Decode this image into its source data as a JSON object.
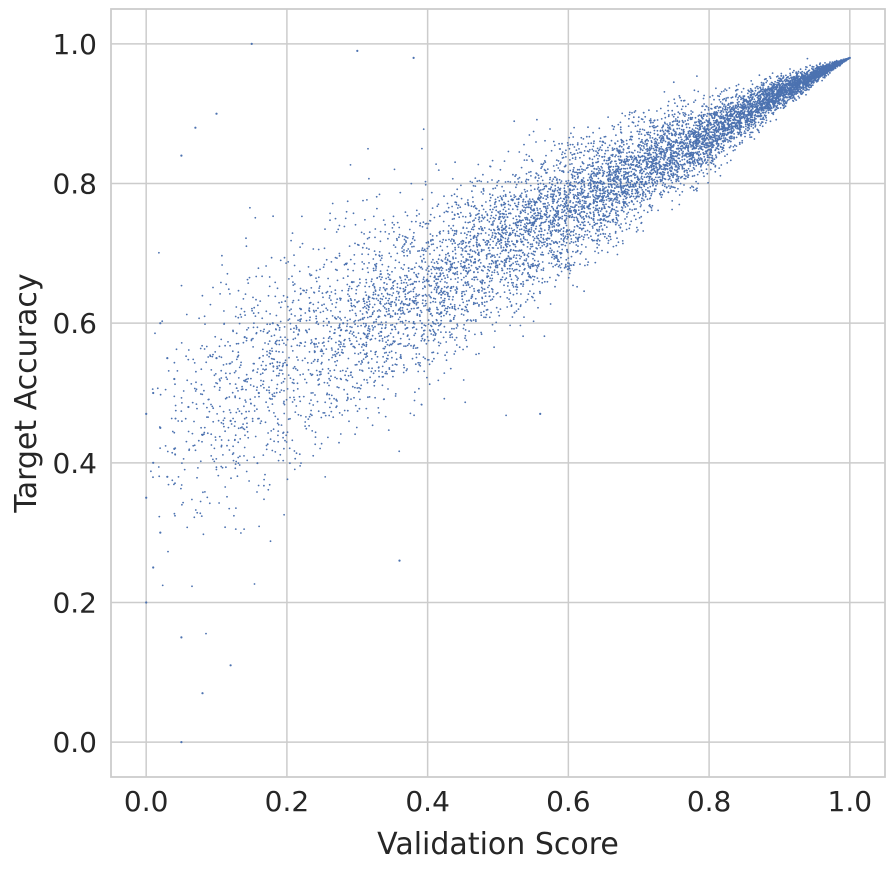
{
  "chart_data": {
    "type": "scatter",
    "title": "",
    "xlabel": "Validation Score",
    "ylabel": "Target Accuracy",
    "xlim": [
      -0.05,
      1.05
    ],
    "ylim": [
      -0.05,
      1.05
    ],
    "x_ticks": [
      0.0,
      0.2,
      0.4,
      0.6,
      0.8,
      1.0
    ],
    "y_ticks": [
      0.0,
      0.2,
      0.4,
      0.6,
      0.8,
      1.0
    ],
    "x_tick_labels": [
      "0.0",
      "0.2",
      "0.4",
      "0.6",
      "0.8",
      "1.0"
    ],
    "y_tick_labels": [
      "0.0",
      "0.2",
      "0.4",
      "0.6",
      "0.8",
      "1.0"
    ],
    "grid": true,
    "legend": "none",
    "marker_color": "#4c72b0",
    "series": [
      {
        "x": [
          0.0,
          0.0,
          0.01,
          0.01,
          0.02,
          0.02,
          0.03,
          0.04,
          0.05,
          0.05,
          0.07,
          0.08,
          0.1,
          0.12,
          0.15,
          0.3,
          0.36,
          0.38,
          0.56,
          1.0,
          0.0,
          0.01,
          0.02,
          0.03,
          0.04,
          0.05,
          0.06,
          0.08,
          0.1,
          0.12,
          0.14,
          0.16,
          0.18,
          0.2,
          0.22,
          0.25,
          0.28,
          0.3,
          0.33,
          0.36,
          0.4,
          0.45,
          0.5,
          0.55,
          0.6,
          0.65,
          0.7,
          0.75,
          0.8,
          0.85,
          0.9,
          0.95
        ],
        "y": [
          0.47,
          0.35,
          0.4,
          0.5,
          0.3,
          0.45,
          0.55,
          0.42,
          0.0,
          0.84,
          0.88,
          0.07,
          0.9,
          0.11,
          1.0,
          0.99,
          0.26,
          0.98,
          0.47,
          0.98,
          0.2,
          0.25,
          0.6,
          0.38,
          0.52,
          0.15,
          0.48,
          0.44,
          0.55,
          0.46,
          0.58,
          0.5,
          0.6,
          0.54,
          0.62,
          0.56,
          0.6,
          0.63,
          0.64,
          0.62,
          0.66,
          0.68,
          0.72,
          0.74,
          0.78,
          0.8,
          0.83,
          0.86,
          0.89,
          0.92,
          0.94,
          0.96
        ]
      }
    ],
    "trend_points": {
      "x": [
        0.0,
        0.1,
        0.2,
        0.3,
        0.4,
        0.5,
        0.6,
        0.7,
        0.8,
        0.9,
        1.0
      ],
      "y_center": [
        0.43,
        0.48,
        0.54,
        0.6,
        0.65,
        0.71,
        0.76,
        0.82,
        0.87,
        0.93,
        0.98
      ],
      "y_spread": [
        0.13,
        0.12,
        0.11,
        0.1,
        0.085,
        0.07,
        0.06,
        0.045,
        0.03,
        0.015,
        0.0
      ]
    },
    "approx_point_count": 60000
  }
}
